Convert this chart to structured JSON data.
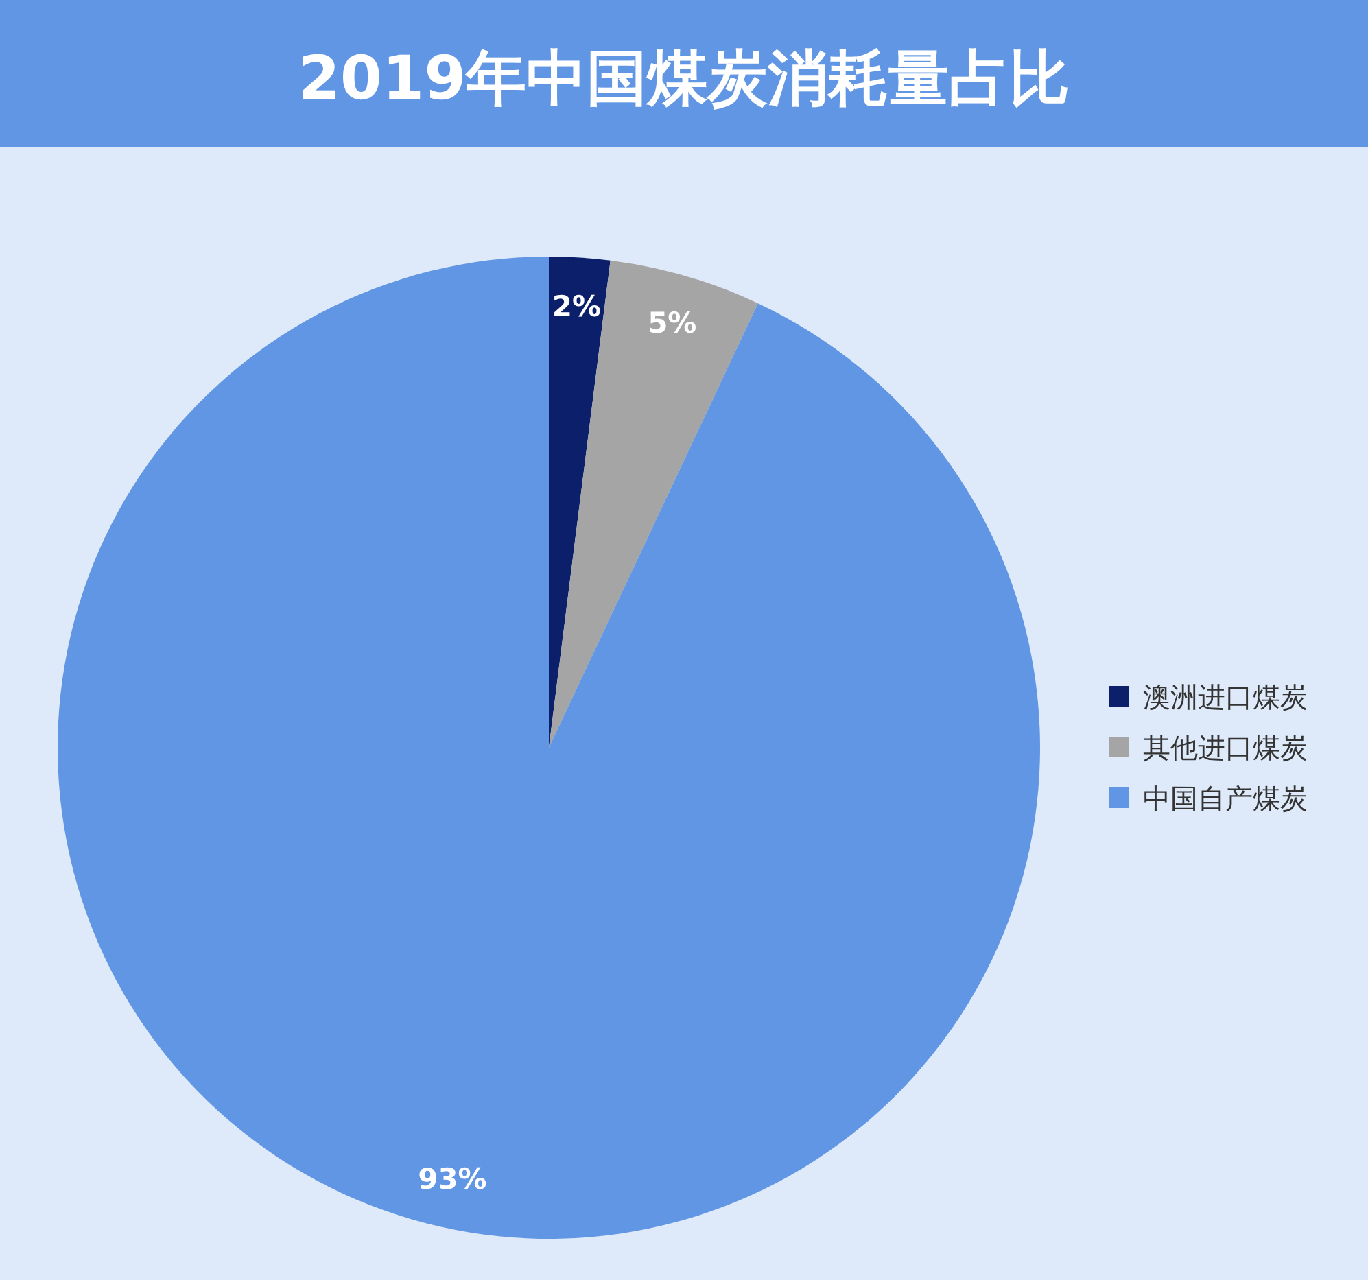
{
  "chart_data": {
    "type": "pie",
    "title": "2019年中国煤炭消耗量占比",
    "categories": [
      "澳洲进口煤炭",
      "其他进口煤炭",
      "中国自产煤炭"
    ],
    "values": [
      2,
      5,
      93
    ],
    "colors": [
      "#0b1f6b",
      "#a5a5a5",
      "#6096e3"
    ],
    "value_labels": [
      "2%",
      "5%",
      "93%"
    ],
    "legend": "right"
  }
}
